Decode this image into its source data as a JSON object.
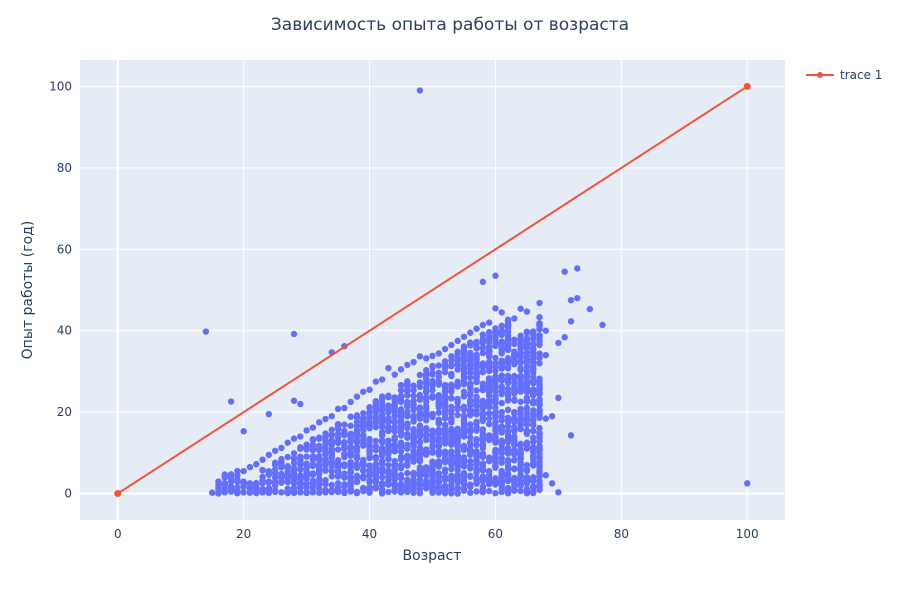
{
  "chart_data": {
    "type": "scatter",
    "title": "Зависимость опыта работы от возраста",
    "xlabel": "Возраст",
    "ylabel": "Опыт работы (год)",
    "xlim": [
      -6,
      106
    ],
    "ylim": [
      -6.5,
      106.5
    ],
    "x_ticks": [
      0,
      20,
      40,
      60,
      80,
      100
    ],
    "y_ticks": [
      0,
      20,
      40,
      60,
      80,
      100
    ],
    "grid": true,
    "legend": "top-right",
    "colors": {
      "plot_bg": "#e5ecf6",
      "grid": "#ffffff",
      "scatter": "#636efa",
      "line": "#ef553b",
      "text": "#2a3f5f"
    },
    "series": [
      {
        "mode": "markers",
        "points": [
          [
            48,
            99
          ],
          [
            100,
            2.5
          ],
          [
            14,
            39.8
          ],
          [
            28,
            39.2
          ],
          [
            34,
            34.7
          ],
          [
            36,
            36.2
          ],
          [
            18,
            22.6
          ],
          [
            20,
            15.3
          ],
          [
            24,
            19.5
          ],
          [
            28,
            22.8
          ],
          [
            29,
            22
          ],
          [
            58,
            52
          ],
          [
            60,
            53.5
          ],
          [
            70,
            37
          ],
          [
            71,
            38.4
          ],
          [
            72,
            42.3
          ],
          [
            75,
            45.3
          ],
          [
            77,
            41.4
          ],
          [
            73,
            48
          ],
          [
            72,
            47.5
          ],
          [
            71,
            54.5
          ],
          [
            73,
            55.3
          ],
          [
            70,
            23.5
          ],
          [
            69,
            19
          ],
          [
            68,
            18.4
          ],
          [
            66,
            19.5
          ],
          [
            65,
            17
          ],
          [
            67,
            13
          ],
          [
            66,
            11.3
          ],
          [
            62,
            8
          ],
          [
            63,
            6
          ],
          [
            65,
            4
          ],
          [
            60,
            9
          ],
          [
            69,
            2.5
          ],
          [
            68,
            4.5
          ],
          [
            70,
            0.3
          ],
          [
            72,
            14.3
          ],
          [
            58,
            1.5
          ],
          [
            59,
            5.5
          ],
          [
            62,
            0.7
          ],
          [
            63,
            3.5
          ],
          [
            64,
            2
          ],
          [
            56,
            2.2
          ],
          [
            57,
            0.5
          ],
          [
            15,
            0.2
          ],
          [
            16,
            1.5
          ],
          [
            17,
            2.4
          ],
          [
            18,
            3.7
          ],
          [
            66,
            8.5
          ],
          [
            67,
            11.2
          ],
          [
            63,
            20
          ],
          [
            61,
            25
          ],
          [
            62,
            23
          ],
          [
            64,
            20.8
          ],
          [
            65,
            27
          ],
          [
            66,
            33
          ],
          [
            68,
            40
          ],
          [
            67,
            46.8
          ],
          [
            65,
            44.7
          ],
          [
            64,
            45.4
          ],
          [
            63,
            43
          ],
          [
            62,
            42.7
          ],
          [
            61,
            44.5
          ],
          [
            60,
            45.5
          ],
          [
            59,
            42
          ],
          [
            58,
            41.4
          ],
          [
            57,
            40.5
          ],
          [
            56,
            39.5
          ],
          [
            55,
            38.5
          ],
          [
            54,
            37.5
          ],
          [
            53,
            36.5
          ],
          [
            52,
            35.5
          ],
          [
            51,
            34.4
          ],
          [
            50,
            33.8
          ],
          [
            49,
            33.2
          ],
          [
            48,
            33.7
          ],
          [
            47,
            32.3
          ],
          [
            46,
            31.6
          ],
          [
            45,
            30.5
          ],
          [
            44,
            29.2
          ],
          [
            43,
            30.8
          ],
          [
            42,
            28
          ],
          [
            41,
            27.5
          ],
          [
            40,
            25.5
          ],
          [
            39,
            25
          ],
          [
            38,
            23.8
          ],
          [
            37,
            22.5
          ],
          [
            36,
            21
          ],
          [
            35,
            20.8
          ],
          [
            34,
            19
          ],
          [
            33,
            18.3
          ],
          [
            32,
            17.5
          ],
          [
            31,
            16.2
          ],
          [
            30,
            15.5
          ],
          [
            29,
            14
          ],
          [
            28,
            13.5
          ],
          [
            27,
            12.5
          ],
          [
            26,
            11.2
          ],
          [
            25,
            10.5
          ],
          [
            24,
            9.5
          ],
          [
            23,
            8.3
          ],
          [
            22,
            7.2
          ],
          [
            21,
            6.5
          ],
          [
            20,
            5.5
          ],
          [
            19,
            4.5
          ],
          [
            60,
            38
          ],
          [
            62,
            37.3
          ],
          [
            63,
            37.8
          ],
          [
            64,
            37.5
          ],
          [
            65,
            38.1
          ],
          [
            66,
            39.4
          ],
          [
            67,
            36.5
          ],
          [
            68,
            34
          ],
          [
            59,
            28
          ],
          [
            58,
            25.4
          ],
          [
            57,
            22.7
          ],
          [
            56,
            20.3
          ],
          [
            55,
            17.5
          ],
          [
            54,
            14.4
          ],
          [
            53,
            12
          ],
          [
            52,
            9.7
          ],
          [
            51,
            7.4
          ],
          [
            50,
            5.8
          ],
          [
            49,
            4.3
          ],
          [
            48,
            2.5
          ],
          [
            47,
            1.3
          ],
          [
            46,
            0.4
          ],
          [
            45,
            0.3
          ],
          [
            44,
            0.5
          ],
          [
            43,
            0.4
          ],
          [
            42,
            0.3
          ],
          [
            41,
            1.3
          ],
          [
            40,
            0.6
          ],
          [
            39,
            1.2
          ],
          [
            38,
            0.4
          ],
          [
            37,
            0.5
          ],
          [
            36,
            0.3
          ],
          [
            35,
            0.4
          ],
          [
            34,
            0.6
          ],
          [
            33,
            0.3
          ],
          [
            32,
            0.2
          ],
          [
            31,
            0.3
          ],
          [
            30,
            0.4
          ],
          [
            29,
            0.3
          ],
          [
            28,
            0.2
          ],
          [
            27,
            0.5
          ],
          [
            26,
            0.3
          ],
          [
            25,
            0.4
          ],
          [
            24,
            0.2
          ],
          [
            23,
            0.3
          ],
          [
            22,
            0.1
          ],
          [
            21,
            0.2
          ],
          [
            20,
            0.3
          ],
          [
            19,
            0.2
          ],
          [
            18,
            0.5
          ],
          [
            17,
            0.3
          ],
          [
            55,
            30
          ],
          [
            56,
            31.5
          ],
          [
            57,
            33
          ],
          [
            58,
            34.5
          ],
          [
            59,
            36
          ],
          [
            60,
            37
          ],
          [
            55,
            25
          ],
          [
            56,
            27
          ],
          [
            57,
            29
          ],
          [
            58,
            22
          ],
          [
            59,
            24
          ],
          [
            60,
            19
          ],
          [
            61,
            18
          ],
          [
            62,
            14
          ],
          [
            63,
            12
          ],
          [
            64,
            10
          ],
          [
            60,
            12.5
          ],
          [
            61,
            15
          ],
          [
            62,
            17.5
          ],
          [
            53,
            25
          ],
          [
            52,
            24
          ],
          [
            51,
            22
          ],
          [
            50,
            19
          ],
          [
            49,
            18
          ],
          [
            48,
            15
          ],
          [
            47,
            13
          ],
          [
            46,
            11
          ],
          [
            45,
            9
          ],
          [
            44,
            7
          ],
          [
            43,
            5.5
          ],
          [
            42,
            4
          ],
          [
            41,
            3
          ]
        ]
      },
      {
        "name": "trace 1",
        "mode": "lines+markers",
        "x": [
          0,
          100
        ],
        "y": [
          0,
          100
        ]
      }
    ]
  }
}
